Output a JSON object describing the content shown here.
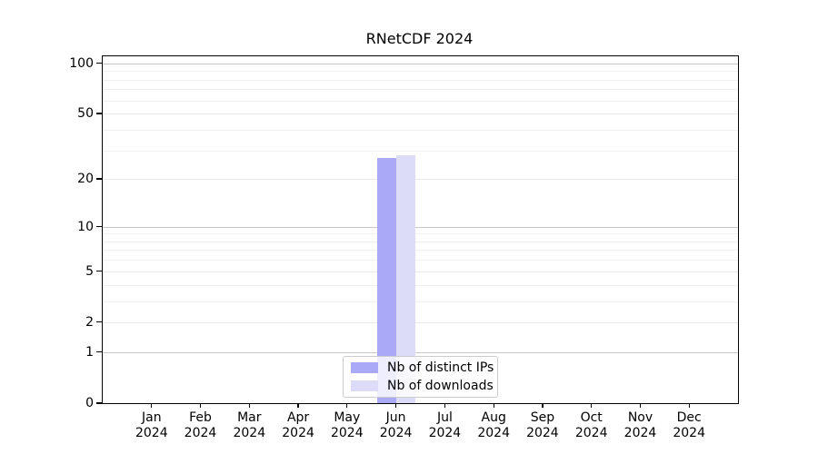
{
  "chart_data": {
    "type": "bar",
    "title": "RNetCDF 2024",
    "x_categories": [
      {
        "month": "Jan",
        "year": "2024"
      },
      {
        "month": "Feb",
        "year": "2024"
      },
      {
        "month": "Mar",
        "year": "2024"
      },
      {
        "month": "Apr",
        "year": "2024"
      },
      {
        "month": "May",
        "year": "2024"
      },
      {
        "month": "Jun",
        "year": "2024"
      },
      {
        "month": "Jul",
        "year": "2024"
      },
      {
        "month": "Aug",
        "year": "2024"
      },
      {
        "month": "Sep",
        "year": "2024"
      },
      {
        "month": "Oct",
        "year": "2024"
      },
      {
        "month": "Nov",
        "year": "2024"
      },
      {
        "month": "Dec",
        "year": "2024"
      }
    ],
    "series": [
      {
        "name": "Nb of distinct IPs",
        "color": "#a9a9f7",
        "values": [
          0,
          0,
          0,
          0,
          0,
          27,
          0,
          0,
          0,
          0,
          0,
          0
        ]
      },
      {
        "name": "Nb of downloads",
        "color": "#dcdcf9",
        "values": [
          0,
          0,
          0,
          0,
          0,
          28,
          0,
          0,
          0,
          0,
          0,
          0
        ]
      }
    ],
    "y_scale": "log1p",
    "ylim": [
      0,
      110
    ],
    "y_ticks": [
      0,
      1,
      2,
      5,
      10,
      20,
      50,
      100
    ],
    "y_minor_gridlines": [
      3,
      4,
      6,
      7,
      8,
      9,
      30,
      40,
      60,
      70,
      80,
      90
    ],
    "grid": "on",
    "legend_position": "lower center"
  },
  "colors": {
    "grid_decade": "#c6c6c6",
    "grid_major": "#e9e9e9",
    "grid_minor": "#f0f0f0",
    "axis": "#000000",
    "legend_border": "#cccccc"
  }
}
